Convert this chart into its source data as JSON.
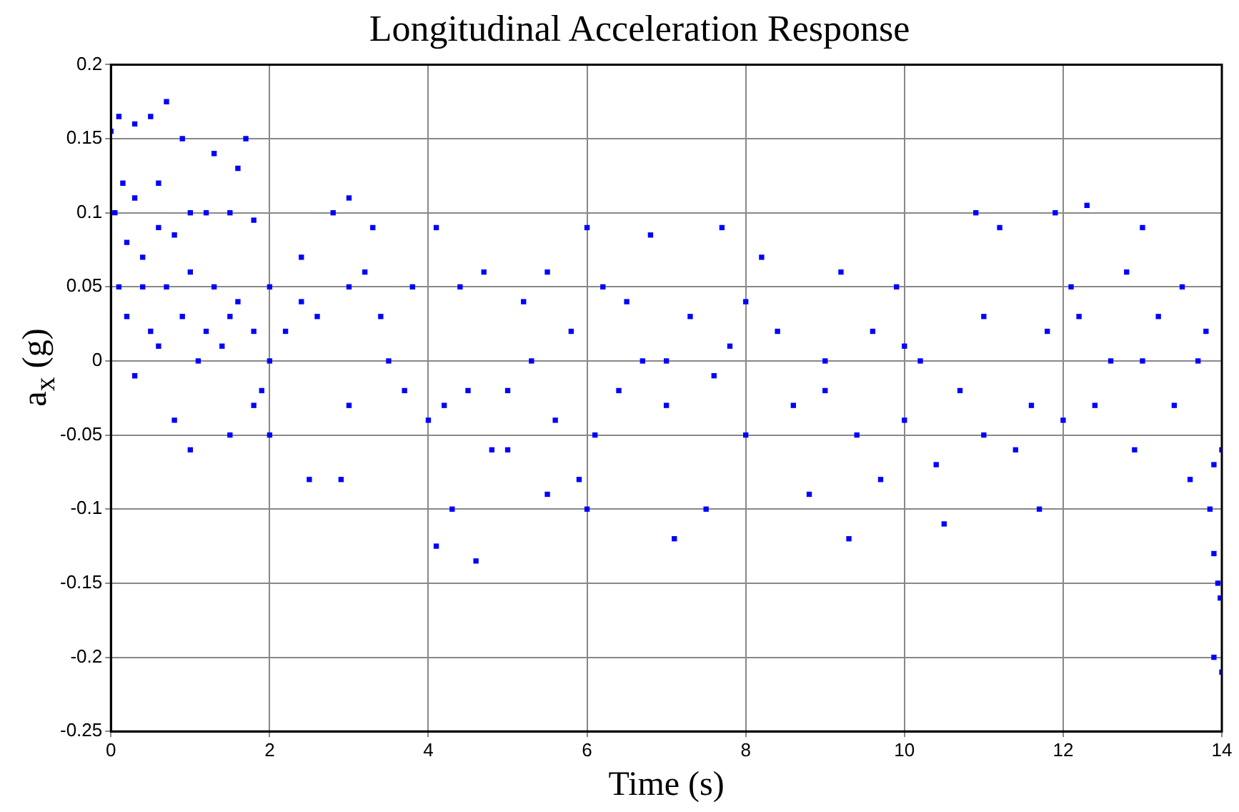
{
  "chart_data": {
    "type": "scatter",
    "title": "Longitudinal Acceleration Response",
    "xlabel": "Time (s)",
    "ylabel": "a$_{x}$ (g)",
    "xlim": [
      0,
      14
    ],
    "xticks": [
      0,
      2,
      4,
      6,
      8,
      10,
      12,
      14
    ],
    "ylim": [
      -0.25,
      0.2
    ],
    "yticks": [
      -0.25,
      -0.2,
      -0.15,
      -0.1,
      -0.05,
      0,
      0.05,
      0.1,
      0.15,
      0.2
    ],
    "grid": true,
    "legend": false,
    "marker": "square",
    "series": [
      {
        "color": "#0000ff",
        "x": [
          0.0,
          0.1,
          0.3,
          0.5,
          0.7,
          0.15,
          0.05,
          0.3,
          0.6,
          0.9,
          1.3,
          1.7,
          1.6,
          0.2,
          0.4,
          0.6,
          0.8,
          1.0,
          1.2,
          1.5,
          1.8,
          0.1,
          0.4,
          0.7,
          1.0,
          1.3,
          1.6,
          2.0,
          2.4,
          0.2,
          0.5,
          0.9,
          1.2,
          1.5,
          1.8,
          0.3,
          0.6,
          1.1,
          1.4,
          1.9,
          0.8,
          1.0,
          1.5,
          2.0,
          2.5,
          2.9,
          1.8,
          2.2,
          2.6,
          3.0,
          3.2,
          3.4,
          2.8,
          3.0,
          3.3,
          2.4,
          3.5,
          3.7,
          4.0,
          4.2,
          4.5,
          3.8,
          4.1,
          4.4,
          4.7,
          4.3,
          4.1,
          4.6,
          4.8,
          5.0,
          5.3,
          5.6,
          5.9,
          5.2,
          5.5,
          5.8,
          6.0,
          6.2,
          6.5,
          6.8,
          6.1,
          6.4,
          6.7,
          7.0,
          7.1,
          7.5,
          7.3,
          7.6,
          7.8,
          8.0,
          8.2,
          7.7,
          8.4,
          8.6,
          8.8,
          9.0,
          9.2,
          9.4,
          9.3,
          9.7,
          9.6,
          9.9,
          10.0,
          10.2,
          10.4,
          10.5,
          10.7,
          10.9,
          11.0,
          11.2,
          11.4,
          11.6,
          11.8,
          11.9,
          11.7,
          12.1,
          12.3,
          12.4,
          12.6,
          12.8,
          12.9,
          13.0,
          13.2,
          13.4,
          13.5,
          13.6,
          13.7,
          13.8,
          13.9,
          13.85,
          13.9,
          13.95,
          13.98,
          13.9,
          14.0,
          14.0,
          2.0,
          3.0,
          5.0,
          6.0,
          8.0,
          10.0,
          11.0,
          12.0,
          13.0,
          12.2,
          9.0,
          7.0,
          5.5
        ],
        "values": [
          0.155,
          0.165,
          0.16,
          0.165,
          0.175,
          0.12,
          0.1,
          0.11,
          0.12,
          0.15,
          0.14,
          0.15,
          0.13,
          0.08,
          0.07,
          0.09,
          0.085,
          0.1,
          0.1,
          0.1,
          0.095,
          0.05,
          0.05,
          0.05,
          0.06,
          0.05,
          0.04,
          0.05,
          0.04,
          0.03,
          0.02,
          0.03,
          0.02,
          0.03,
          0.02,
          -0.01,
          0.01,
          0.0,
          0.01,
          -0.02,
          -0.04,
          -0.06,
          -0.05,
          -0.05,
          -0.08,
          -0.08,
          -0.03,
          0.02,
          0.03,
          0.05,
          0.06,
          0.03,
          0.1,
          0.11,
          0.09,
          0.07,
          0.0,
          -0.02,
          -0.04,
          -0.03,
          -0.02,
          0.05,
          0.09,
          0.05,
          0.06,
          -0.1,
          -0.125,
          -0.135,
          -0.06,
          -0.02,
          0.0,
          -0.04,
          -0.08,
          0.04,
          0.06,
          0.02,
          0.09,
          0.05,
          0.04,
          0.085,
          -0.05,
          -0.02,
          0.0,
          -0.03,
          -0.12,
          -0.1,
          0.03,
          -0.01,
          0.01,
          0.04,
          0.07,
          0.09,
          0.02,
          -0.03,
          -0.09,
          -0.02,
          0.06,
          -0.05,
          -0.12,
          -0.08,
          0.02,
          0.05,
          -0.04,
          0.0,
          -0.07,
          -0.11,
          -0.02,
          0.1,
          0.03,
          0.09,
          -0.06,
          -0.03,
          0.02,
          0.1,
          -0.1,
          0.05,
          0.105,
          -0.03,
          0.0,
          0.06,
          -0.06,
          0.09,
          0.03,
          -0.03,
          0.05,
          -0.08,
          0.0,
          0.02,
          -0.07,
          -0.1,
          -0.13,
          -0.15,
          -0.16,
          -0.2,
          -0.21,
          -0.06,
          0.0,
          -0.03,
          -0.06,
          -0.1,
          -0.05,
          0.01,
          -0.05,
          -0.04,
          0.0,
          0.03,
          0.0,
          0.0,
          -0.09
        ]
      }
    ]
  }
}
